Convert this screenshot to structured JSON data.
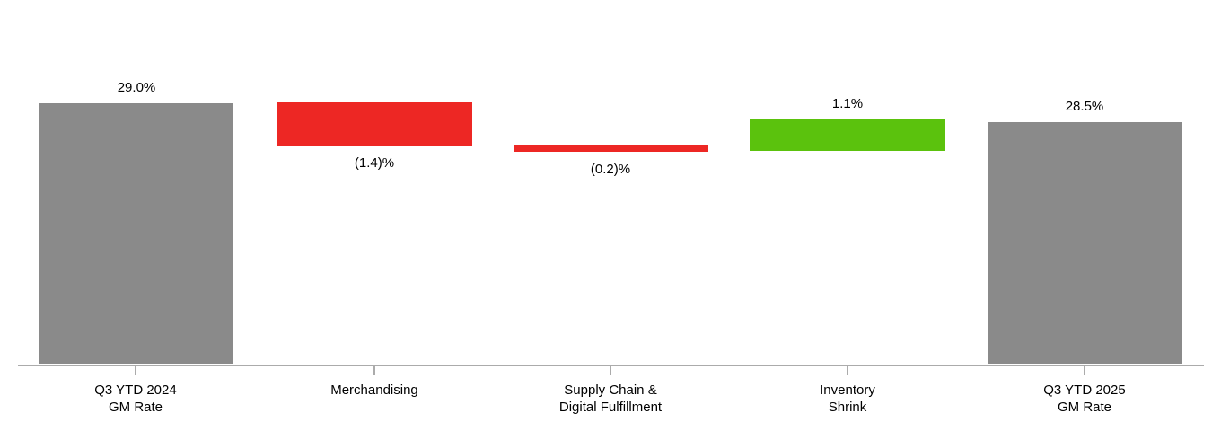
{
  "chart_data": {
    "type": "bar",
    "subtype": "waterfall",
    "title": "",
    "xlabel": "",
    "ylabel": "",
    "unit": "%",
    "legend": "none",
    "grid": false,
    "categories": [
      "Q3 YTD 2024 GM Rate",
      "Merchandising",
      "Supply Chain & Digital Fulfillment",
      "Inventory Shrink",
      "Q3 YTD 2025 GM Rate"
    ],
    "values": [
      29.0,
      -1.4,
      -0.2,
      1.1,
      28.5
    ],
    "bars": [
      {
        "category_line1": "Q3 YTD 2024",
        "category_line2": "GM Rate",
        "value": 29.0,
        "value_label": "29.0%",
        "kind": "total",
        "value_label_position": "above"
      },
      {
        "category_line1": "Merchandising",
        "category_line2": "",
        "value": -1.4,
        "value_label": "(1.4)%",
        "kind": "decrease",
        "value_label_position": "below"
      },
      {
        "category_line1": "Supply Chain &",
        "category_line2": "Digital Fulfillment",
        "value": -0.2,
        "value_label": "(0.2)%",
        "kind": "decrease",
        "value_label_position": "below"
      },
      {
        "category_line1": "Inventory",
        "category_line2": "Shrink",
        "value": 1.1,
        "value_label": "1.1%",
        "kind": "increase",
        "value_label_position": "above"
      },
      {
        "category_line1": "Q3 YTD 2025",
        "category_line2": "GM Rate",
        "value": 28.5,
        "value_label": "28.5%",
        "kind": "total",
        "value_label_position": "above"
      }
    ],
    "colors": {
      "total": "#8A8A8A",
      "decrease": "#ED2724",
      "increase": "#5BC20D",
      "axis": "#ABABAB",
      "text": "#000000",
      "background": "#FFFFFF"
    }
  }
}
